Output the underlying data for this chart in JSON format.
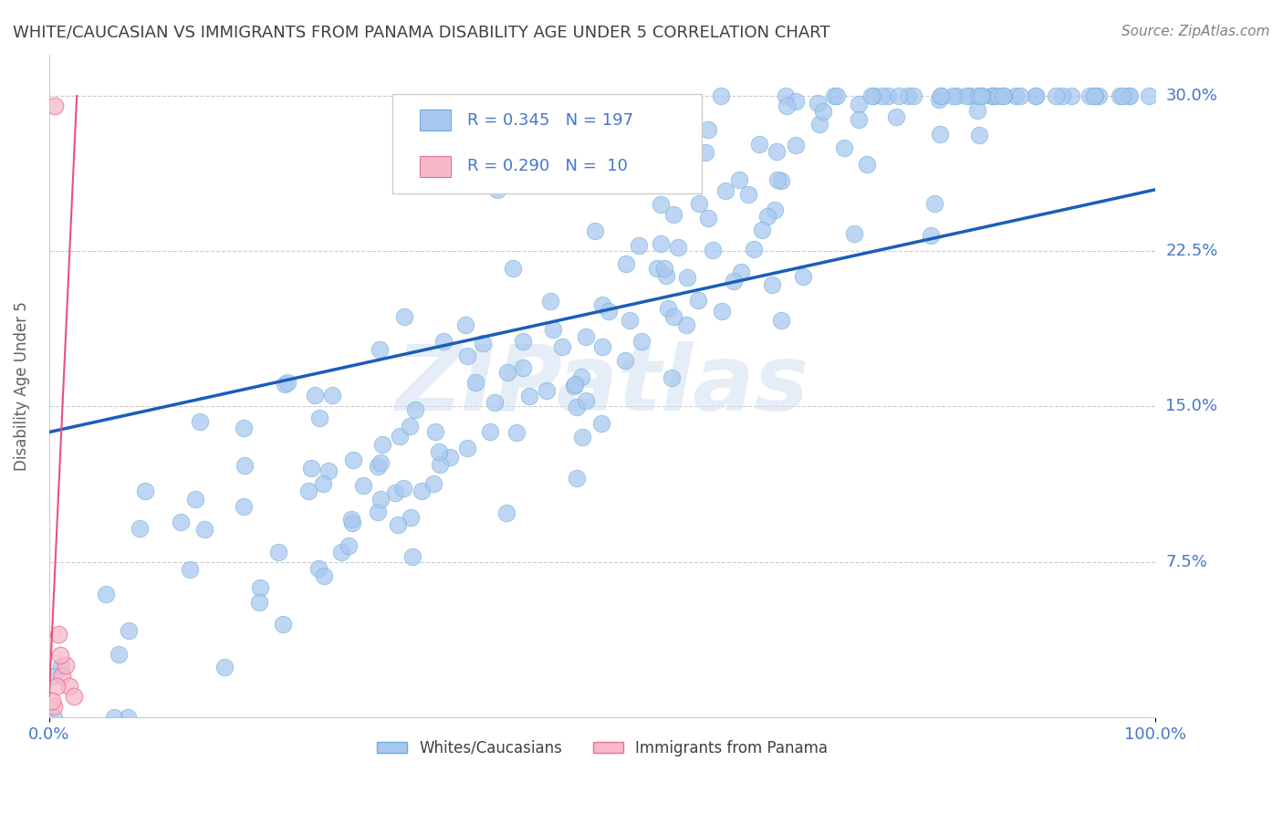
{
  "title": "WHITE/CAUCASIAN VS IMMIGRANTS FROM PANAMA DISABILITY AGE UNDER 5 CORRELATION CHART",
  "source": "Source: ZipAtlas.com",
  "xlabel": "",
  "ylabel": "Disability Age Under 5",
  "watermark": "ZIPatlas",
  "xlim": [
    0.0,
    1.0
  ],
  "ylim": [
    0.0,
    0.32
  ],
  "yticks": [
    0.0,
    0.075,
    0.15,
    0.225,
    0.3
  ],
  "ytick_labels": [
    "",
    "7.5%",
    "15.0%",
    "22.5%",
    "30.0%"
  ],
  "xtick_labels": [
    "0.0%",
    "100.0%"
  ],
  "legend_r1": "R = 0.345",
  "legend_n1": "N = 197",
  "legend_r2": "R = 0.290",
  "legend_n2": " 10",
  "blue_color": "#a8c8f0",
  "blue_edge": "#6baed6",
  "pink_color": "#f8b8c8",
  "pink_edge": "#e87090",
  "trend_blue": "#1a5eb8",
  "trend_pink": "#e85080",
  "title_color": "#404040",
  "source_color": "#808080",
  "label_color": "#4477cc",
  "R_N_color": "#4477cc",
  "background": "#ffffff",
  "grid_color": "#cccccc",
  "seed": 42,
  "n_blue": 197,
  "n_pink": 10,
  "blue_R": 0.345,
  "pink_R": 0.29
}
